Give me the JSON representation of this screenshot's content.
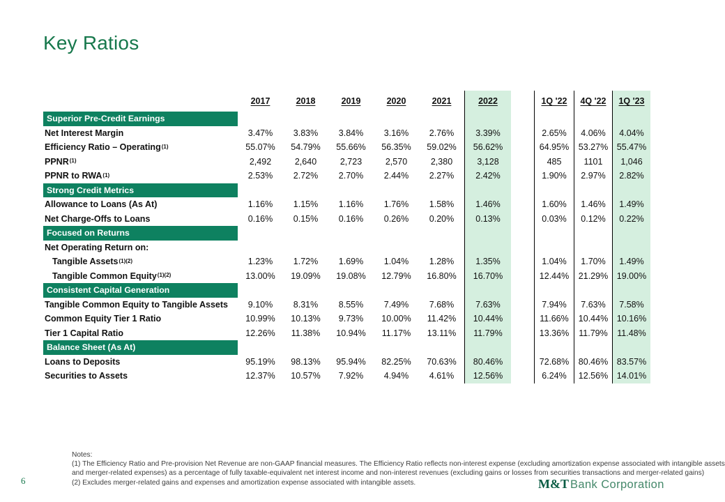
{
  "slide": {
    "title": "Key Ratios",
    "page_number": "6"
  },
  "colors": {
    "section_bar_green": "#0E8160",
    "highlight_column_green": "#D5EFDF",
    "title_green": "#17784C",
    "logo_dark_green": "#0A5C44",
    "logo_light_green": "#44886A"
  },
  "table": {
    "column_headers": [
      "2017",
      "2018",
      "2019",
      "2020",
      "2021",
      "2022",
      "1Q '22",
      "4Q '22",
      "1Q '23"
    ],
    "highlighted_columns": [
      "2022",
      "1Q '23"
    ],
    "sections": [
      {
        "header": "Superior Pre-Credit Earnings",
        "rows": [
          {
            "label": "Net Interest Margin",
            "sup": "",
            "indent": false,
            "values": [
              "3.47%",
              "3.83%",
              "3.84%",
              "3.16%",
              "2.76%",
              "3.39%",
              "2.65%",
              "4.06%",
              "4.04%"
            ]
          },
          {
            "label": "Efficiency Ratio – Operating",
            "sup": "(1)",
            "indent": false,
            "values": [
              "55.07%",
              "54.79%",
              "55.66%",
              "56.35%",
              "59.02%",
              "56.62%",
              "64.95%",
              "53.27%",
              "55.47%"
            ]
          },
          {
            "label": "PPNR",
            "sup": "(1)",
            "indent": false,
            "values": [
              "2,492",
              "2,640",
              "2,723",
              "2,570",
              "2,380",
              "3,128",
              "485",
              "1101",
              "1,046"
            ]
          },
          {
            "label": "PPNR to RWA",
            "sup": "(1)",
            "indent": false,
            "values": [
              "2.53%",
              "2.72%",
              "2.70%",
              "2.44%",
              "2.27%",
              "2.42%",
              "1.90%",
              "2.97%",
              "2.82%"
            ]
          }
        ]
      },
      {
        "header": "Strong Credit Metrics",
        "rows": [
          {
            "label": "Allowance to Loans (As At)",
            "sup": "",
            "indent": false,
            "values": [
              "1.16%",
              "1.15%",
              "1.16%",
              "1.76%",
              "1.58%",
              "1.46%",
              "1.60%",
              "1.46%",
              "1.49%"
            ]
          },
          {
            "label": "Net Charge-Offs to Loans",
            "sup": "",
            "indent": false,
            "values": [
              "0.16%",
              "0.15%",
              "0.16%",
              "0.26%",
              "0.20%",
              "0.13%",
              "0.03%",
              "0.12%",
              "0.22%"
            ]
          }
        ]
      },
      {
        "header": "Focused on Returns",
        "rows": [
          {
            "label": "Net Operating Return on:",
            "sup": "",
            "indent": false,
            "values": [
              "",
              "",
              "",
              "",
              "",
              "",
              "",
              "",
              ""
            ]
          },
          {
            "label": "Tangible Assets",
            "sup": "(1)(2)",
            "indent": true,
            "values": [
              "1.23%",
              "1.72%",
              "1.69%",
              "1.04%",
              "1.28%",
              "1.35%",
              "1.04%",
              "1.70%",
              "1.49%"
            ]
          },
          {
            "label": "Tangible Common Equity",
            "sup": "(1)(2)",
            "indent": true,
            "values": [
              "13.00%",
              "19.09%",
              "19.08%",
              "12.79%",
              "16.80%",
              "16.70%",
              "12.44%",
              "21.29%",
              "19.00%"
            ]
          }
        ]
      },
      {
        "header": "Consistent Capital Generation",
        "rows": [
          {
            "label": "Tangible Common Equity to Tangible Assets",
            "sup": "",
            "indent": false,
            "values": [
              "9.10%",
              "8.31%",
              "8.55%",
              "7.49%",
              "7.68%",
              "7.63%",
              "7.94%",
              "7.63%",
              "7.58%"
            ]
          },
          {
            "label": "Common Equity Tier 1 Ratio",
            "sup": "",
            "indent": false,
            "values": [
              "10.99%",
              "10.13%",
              "9.73%",
              "10.00%",
              "11.42%",
              "10.44%",
              "11.66%",
              "10.44%",
              "10.16%"
            ]
          },
          {
            "label": "Tier 1 Capital Ratio",
            "sup": "",
            "indent": false,
            "values": [
              "12.26%",
              "11.38%",
              "10.94%",
              "11.17%",
              "13.11%",
              "11.79%",
              "13.36%",
              "11.79%",
              "11.48%"
            ]
          }
        ]
      },
      {
        "header": "Balance Sheet (As At)",
        "rows": [
          {
            "label": "Loans to Deposits",
            "sup": "",
            "indent": false,
            "values": [
              "95.19%",
              "98.13%",
              "95.94%",
              "82.25%",
              "70.63%",
              "80.46%",
              "72.68%",
              "80.46%",
              "83.57%"
            ]
          },
          {
            "label": "Securities to Assets",
            "sup": "",
            "indent": false,
            "values": [
              "12.37%",
              "10.57%",
              "7.92%",
              "4.94%",
              "4.61%",
              "12.56%",
              "6.24%",
              "12.56%",
              "14.01%"
            ]
          }
        ]
      }
    ]
  },
  "notes": {
    "heading": "Notes:",
    "lines": [
      "(1) The Efficiency Ratio and Pre-provision Net Revenue are non-GAAP financial measures. The Efficiency Ratio reflects non-interest expense (excluding amortization expense associated with intangible assets",
      "and merger-related expenses) as a percentage of fully taxable-equivalent net interest income and non-interest revenues (excluding gains or losses from securities transactions and merger-related gains)",
      "(2) Excludes merger-related gains and expenses and amortization expense associated with intangible assets."
    ]
  },
  "logo": {
    "prefix": "M&T",
    "suffix": "Bank Corporation"
  }
}
